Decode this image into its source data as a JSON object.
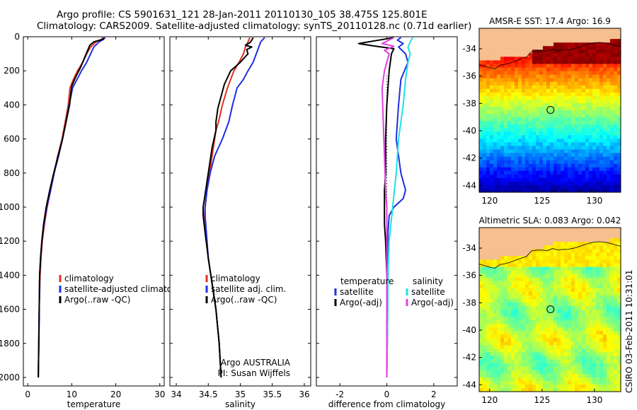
{
  "title": {
    "line1": "Argo profile: CS 5901631_121 28-Jan-2011 20110130_105 38.475S 125.801E",
    "line2": "Climatology: CARS2009. Satellite-adjusted climatology: synTS_20110128.nc (0.71d earlier)"
  },
  "colors": {
    "climatology": "#e0301e",
    "satellite": "#1f2fe0",
    "argo": "#000000",
    "argo_salinity_diff": "#e040e0",
    "satellite_salinity_diff": "#20e0e8"
  },
  "chart_data": [
    {
      "type": "line",
      "id": "temperature",
      "xlabel": "temperature",
      "xlim": [
        -1,
        31
      ],
      "ylim": [
        0,
        2050
      ],
      "x_ticks": [
        0,
        10,
        20,
        30
      ],
      "y_ticks": [
        0,
        200,
        400,
        600,
        800,
        1000,
        1200,
        1400,
        1600,
        1800,
        2000
      ],
      "legend": [
        "climatology",
        "satellite-adjusted climatology",
        "Argo(..raw -QC)"
      ],
      "series": [
        {
          "name": "climatology",
          "color_key": "climatology",
          "points": [
            [
              17.0,
              5
            ],
            [
              16.8,
              15
            ],
            [
              15.5,
              30
            ],
            [
              14.3,
              60
            ],
            [
              13.4,
              100
            ],
            [
              12.5,
              150
            ],
            [
              11.3,
              200
            ],
            [
              10.2,
              260
            ],
            [
              9.6,
              300
            ],
            [
              9.2,
              400
            ],
            [
              8.5,
              500
            ],
            [
              7.8,
              600
            ],
            [
              6.8,
              700
            ],
            [
              6.0,
              800
            ],
            [
              5.2,
              900
            ],
            [
              4.4,
              1000
            ],
            [
              3.8,
              1100
            ],
            [
              3.3,
              1200
            ],
            [
              3.0,
              1300
            ],
            [
              2.8,
              1400
            ],
            [
              2.6,
              1600
            ],
            [
              2.5,
              1800
            ],
            [
              2.4,
              2000
            ]
          ]
        },
        {
          "name": "satellite",
          "color_key": "satellite",
          "points": [
            [
              17.6,
              5
            ],
            [
              17.2,
              15
            ],
            [
              16.2,
              30
            ],
            [
              15.0,
              60
            ],
            [
              14.3,
              100
            ],
            [
              13.4,
              150
            ],
            [
              12.2,
              200
            ],
            [
              11.2,
              250
            ],
            [
              10.2,
              300
            ],
            [
              9.4,
              400
            ],
            [
              8.7,
              500
            ],
            [
              7.9,
              600
            ],
            [
              7.0,
              700
            ],
            [
              6.0,
              800
            ],
            [
              5.2,
              900
            ],
            [
              4.3,
              1000
            ],
            [
              3.7,
              1100
            ],
            [
              3.2,
              1200
            ],
            [
              2.9,
              1300
            ],
            [
              2.7,
              1400
            ],
            [
              2.6,
              1600
            ],
            [
              2.5,
              1800
            ],
            [
              2.4,
              2000
            ]
          ]
        },
        {
          "name": "Argo",
          "color_key": "argo",
          "points": [
            [
              17.3,
              5
            ],
            [
              17.1,
              15
            ],
            [
              15.0,
              30
            ],
            [
              14.1,
              50
            ],
            [
              13.6,
              80
            ],
            [
              12.8,
              130
            ],
            [
              12.0,
              180
            ],
            [
              11.0,
              230
            ],
            [
              10.0,
              290
            ],
            [
              9.5,
              400
            ],
            [
              8.7,
              500
            ],
            [
              7.9,
              600
            ],
            [
              6.9,
              700
            ],
            [
              5.9,
              800
            ],
            [
              5.0,
              900
            ],
            [
              4.2,
              1000
            ],
            [
              3.6,
              1100
            ],
            [
              3.2,
              1200
            ],
            [
              2.9,
              1300
            ],
            [
              2.7,
              1400
            ],
            [
              2.6,
              1600
            ],
            [
              2.5,
              1800
            ],
            [
              2.4,
              2000
            ]
          ]
        }
      ]
    },
    {
      "type": "line",
      "id": "salinity",
      "xlabel": "salinity",
      "xlim": [
        33.9,
        36.1
      ],
      "ylim": [
        0,
        2050
      ],
      "x_ticks": [
        34,
        34.5,
        35,
        35.5,
        36
      ],
      "y_ticks": [
        0,
        200,
        400,
        600,
        800,
        1000,
        1200,
        1400,
        1600,
        1800,
        2000
      ],
      "legend": [
        "climatology",
        "satellite adj. clim.",
        "Argo(..raw -QC)"
      ],
      "annotation": [
        "Argo AUSTRALIA",
        "PI: Susan Wijffels"
      ],
      "series": [
        {
          "name": "climatology",
          "color_key": "climatology",
          "points": [
            [
              35.15,
              5
            ],
            [
              35.12,
              30
            ],
            [
              35.08,
              60
            ],
            [
              35.05,
              100
            ],
            [
              34.98,
              150
            ],
            [
              34.9,
              200
            ],
            [
              34.85,
              250
            ],
            [
              34.8,
              300
            ],
            [
              34.72,
              400
            ],
            [
              34.66,
              500
            ],
            [
              34.62,
              550
            ],
            [
              34.58,
              650
            ],
            [
              34.52,
              800
            ],
            [
              34.48,
              900
            ],
            [
              34.45,
              1000
            ],
            [
              34.44,
              1050
            ],
            [
              34.46,
              1150
            ],
            [
              34.5,
              1300
            ],
            [
              34.56,
              1450
            ],
            [
              34.62,
              1600
            ],
            [
              34.67,
              1800
            ],
            [
              34.7,
              2000
            ]
          ]
        },
        {
          "name": "satellite",
          "color_key": "satellite",
          "points": [
            [
              35.38,
              5
            ],
            [
              35.32,
              30
            ],
            [
              35.3,
              50
            ],
            [
              35.28,
              70
            ],
            [
              35.25,
              100
            ],
            [
              35.2,
              150
            ],
            [
              35.12,
              200
            ],
            [
              35.05,
              250
            ],
            [
              34.95,
              300
            ],
            [
              34.88,
              400
            ],
            [
              34.82,
              500
            ],
            [
              34.72,
              600
            ],
            [
              34.6,
              700
            ],
            [
              34.53,
              800
            ],
            [
              34.48,
              900
            ],
            [
              34.45,
              1000
            ],
            [
              34.45,
              1050
            ],
            [
              34.47,
              1150
            ],
            [
              34.5,
              1300
            ],
            [
              34.56,
              1450
            ],
            [
              34.62,
              1600
            ],
            [
              34.67,
              1800
            ],
            [
              34.7,
              2000
            ]
          ]
        },
        {
          "name": "Argo",
          "color_key": "argo",
          "points": [
            [
              35.2,
              5
            ],
            [
              35.18,
              20
            ],
            [
              35.15,
              35
            ],
            [
              35.08,
              50
            ],
            [
              35.18,
              60
            ],
            [
              35.1,
              75
            ],
            [
              35.12,
              100
            ],
            [
              35.0,
              150
            ],
            [
              34.85,
              200
            ],
            [
              34.75,
              280
            ],
            [
              34.7,
              350
            ],
            [
              34.65,
              420
            ],
            [
              34.62,
              500
            ],
            [
              34.62,
              550
            ],
            [
              34.56,
              650
            ],
            [
              34.5,
              800
            ],
            [
              34.46,
              900
            ],
            [
              34.42,
              1000
            ],
            [
              34.42,
              1050
            ],
            [
              34.45,
              1150
            ],
            [
              34.5,
              1300
            ],
            [
              34.56,
              1450
            ],
            [
              34.62,
              1600
            ],
            [
              34.67,
              1800
            ],
            [
              34.7,
              2000
            ]
          ]
        }
      ]
    },
    {
      "type": "line",
      "id": "difference",
      "xlabel": "difference from climatology",
      "xlim": [
        -3,
        3
      ],
      "ylim": [
        0,
        2050
      ],
      "x_ticks": [
        -2,
        0,
        2
      ],
      "y_ticks": [
        0,
        200,
        400,
        600,
        800,
        1000,
        1200,
        1400,
        1600,
        1800,
        2000
      ],
      "legend_left": {
        "title": "temperature",
        "items": [
          "satellite",
          "Argo(-adj)"
        ]
      },
      "legend_right": {
        "title": "salinity",
        "items": [
          "satellite",
          "Argo(-adj)"
        ]
      },
      "series": [
        {
          "name": "temperature satellite",
          "color_key": "satellite",
          "points": [
            [
              0.6,
              5
            ],
            [
              0.45,
              20
            ],
            [
              0.7,
              40
            ],
            [
              0.5,
              60
            ],
            [
              0.8,
              100
            ],
            [
              0.9,
              150
            ],
            [
              0.6,
              250
            ],
            [
              0.5,
              400
            ],
            [
              0.4,
              600
            ],
            [
              0.5,
              700
            ],
            [
              0.6,
              800
            ],
            [
              0.8,
              900
            ],
            [
              0.7,
              950
            ],
            [
              0.3,
              1000
            ],
            [
              0.1,
              1050
            ],
            [
              0.05,
              1150
            ],
            [
              0.05,
              1400
            ],
            [
              0.03,
              1700
            ],
            [
              0.0,
              2000
            ]
          ]
        },
        {
          "name": "temperature Argo",
          "color_key": "argo",
          "points": [
            [
              0.3,
              5
            ],
            [
              -1.2,
              40
            ],
            [
              -0.5,
              55
            ],
            [
              0.3,
              70
            ],
            [
              0.2,
              100
            ],
            [
              0.1,
              200
            ],
            [
              0.0,
              400
            ],
            [
              -0.05,
              600
            ],
            [
              -0.05,
              800
            ],
            [
              -0.1,
              900
            ],
            [
              -0.1,
              1000
            ],
            [
              -0.1,
              1100
            ],
            [
              -0.05,
              1200
            ],
            [
              0.0,
              1400
            ],
            [
              0.0,
              2000
            ]
          ]
        },
        {
          "name": "salinity satellite",
          "color_key": "satellite_salinity_diff",
          "points": [
            [
              1.1,
              5
            ],
            [
              1.0,
              30
            ],
            [
              0.9,
              60
            ],
            [
              1.0,
              100
            ],
            [
              0.9,
              150
            ],
            [
              0.8,
              250
            ],
            [
              0.7,
              400
            ],
            [
              0.5,
              600
            ],
            [
              0.4,
              800
            ],
            [
              0.25,
              1000
            ],
            [
              0.1,
              1200
            ],
            [
              0.05,
              1400
            ],
            [
              0.03,
              1700
            ],
            [
              0.0,
              2000
            ]
          ]
        },
        {
          "name": "salinity Argo",
          "color_key": "argo_salinity_diff",
          "points": [
            [
              0.3,
              5
            ],
            [
              -0.2,
              40
            ],
            [
              0.3,
              55
            ],
            [
              -0.1,
              80
            ],
            [
              0.1,
              100
            ],
            [
              -0.1,
              200
            ],
            [
              -0.2,
              300
            ],
            [
              -0.15,
              500
            ],
            [
              -0.1,
              700
            ],
            [
              -0.05,
              900
            ],
            [
              0.0,
              1000
            ],
            [
              0.0,
              1200
            ],
            [
              0.0,
              1400
            ],
            [
              0.0,
              2000
            ]
          ]
        }
      ]
    },
    {
      "type": "heatmap",
      "id": "sst_map",
      "title": "AMSR-E SST: 17.4 Argo: 16.9",
      "xlim": [
        119,
        132.5
      ],
      "ylim": [
        -44.5,
        -32.5
      ],
      "x_ticks": [
        120,
        125,
        130
      ],
      "y_ticks": [
        -34,
        -36,
        -38,
        -40,
        -42,
        -44
      ],
      "float_position": {
        "lon": 125.801,
        "lat": -38.475
      }
    },
    {
      "type": "heatmap",
      "id": "sla_map",
      "title": "Altimetric SLA: 0.083 Argo: 0.042",
      "xlim": [
        119,
        132.5
      ],
      "ylim": [
        -44.5,
        -32.5
      ],
      "x_ticks": [
        120,
        125,
        130
      ],
      "y_ticks": [
        -34,
        -36,
        -38,
        -40,
        -42,
        -44
      ],
      "float_position": {
        "lon": 125.801,
        "lat": -38.475
      }
    }
  ],
  "footer": "CSIRO 03-Feb-2011 10:31:01"
}
